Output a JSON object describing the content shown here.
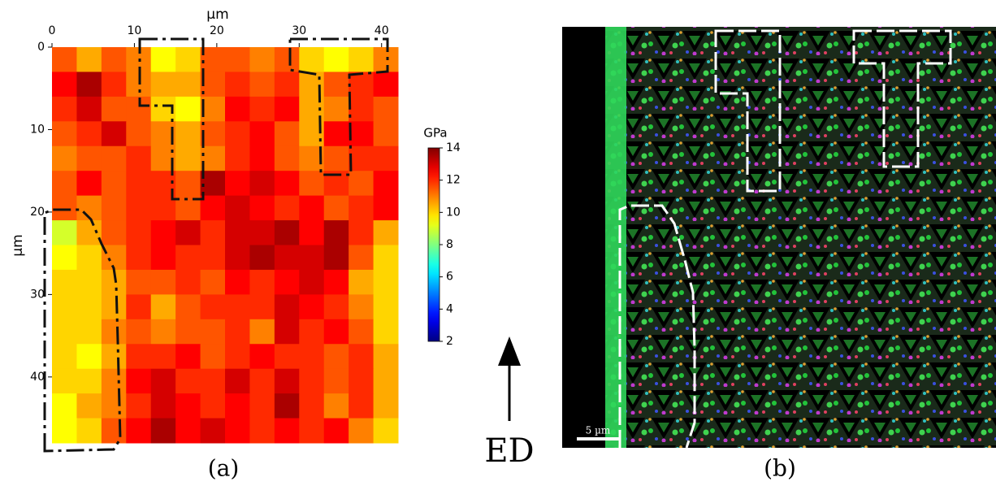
{
  "chart_data": {
    "type": "heatmap",
    "colormap": "jet",
    "xlabel": "µm",
    "ylabel": "µm",
    "xlim": [
      0,
      42
    ],
    "ylim": [
      0,
      48
    ],
    "xticks": [
      0,
      10,
      20,
      30,
      40
    ],
    "yticks": [
      0,
      10,
      20,
      30,
      40
    ],
    "z": [
      [
        11.5,
        10.5,
        11.5,
        11,
        9.5,
        10,
        11.5,
        11.5,
        11,
        11.5,
        10,
        9.5,
        10,
        11
      ],
      [
        12.5,
        13.5,
        12,
        11,
        10.5,
        10.5,
        11.5,
        12,
        11.5,
        12,
        10.5,
        11.5,
        12,
        12.5
      ],
      [
        12,
        13,
        11.5,
        11.5,
        10,
        9.5,
        11,
        12.5,
        12,
        12.5,
        10.5,
        11,
        12,
        11.5
      ],
      [
        11.5,
        12,
        13,
        11.5,
        11,
        10.5,
        11.5,
        12,
        12.5,
        11.5,
        10.5,
        12.5,
        12.5,
        11.5
      ],
      [
        11,
        11.5,
        11.5,
        12,
        11,
        10.5,
        11,
        12,
        12.5,
        11.5,
        11,
        11.5,
        12,
        12
      ],
      [
        11.5,
        12.5,
        11.5,
        12,
        12,
        11.5,
        13.5,
        12.5,
        13,
        12.5,
        11.5,
        12,
        11.5,
        12.5
      ],
      [
        11.5,
        11,
        11.5,
        12,
        12,
        11.5,
        12.5,
        13,
        12.5,
        12,
        12.5,
        11.5,
        12,
        12.5
      ],
      [
        9,
        10.5,
        11.5,
        12,
        12.5,
        13,
        12,
        13,
        13,
        13.5,
        12.5,
        13.5,
        12,
        10.5
      ],
      [
        9.5,
        10,
        11,
        12,
        12.5,
        12,
        12,
        13,
        13.5,
        13,
        13,
        13.5,
        11.5,
        10
      ],
      [
        10,
        10,
        10.5,
        11.5,
        11.5,
        12,
        11.5,
        12.5,
        12,
        12.5,
        13,
        12.5,
        10.5,
        10
      ],
      [
        10,
        10,
        10.5,
        12,
        10.5,
        11.5,
        12,
        12,
        12,
        13,
        12.5,
        12,
        11,
        10
      ],
      [
        10,
        10,
        11,
        11.5,
        11,
        11.5,
        11.5,
        12,
        11,
        13,
        12,
        12.5,
        11.5,
        10
      ],
      [
        10,
        9.5,
        10.5,
        12,
        12,
        12.5,
        11.5,
        12,
        12.5,
        12,
        12,
        11.5,
        12,
        10.5
      ],
      [
        10,
        10,
        11,
        12.5,
        13,
        12,
        12,
        13,
        12,
        13,
        12,
        11.5,
        12,
        10.5
      ],
      [
        9.5,
        10.5,
        11,
        12,
        13,
        12.5,
        12,
        12.5,
        12,
        13.5,
        12,
        11,
        12,
        10.5
      ],
      [
        9.5,
        10,
        11.5,
        12.5,
        13.5,
        12.5,
        13,
        12.5,
        12,
        12.5,
        12,
        12.5,
        11,
        10
      ]
    ],
    "colorbar": {
      "label": "GPa",
      "lim": [
        2,
        14
      ],
      "ticks": [
        2,
        4,
        6,
        8,
        10,
        12,
        14
      ]
    }
  },
  "captions": [
    "(a)",
    "(b)"
  ],
  "direction_label": "ED",
  "scale_bar_label": "5 µm"
}
